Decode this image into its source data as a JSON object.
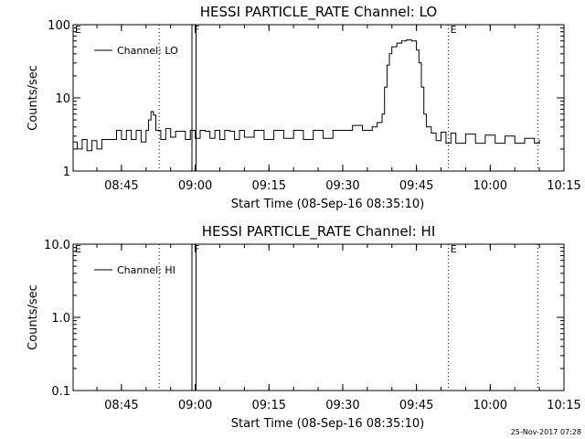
{
  "chart_data": [
    {
      "type": "line",
      "title": "HESSI PARTICLE_RATE Channel: LO",
      "xlabel": "Start Time (08-Sep-16 08:35:10)",
      "ylabel": "Counts/sec",
      "yscale": "log",
      "ylim": [
        1,
        100
      ],
      "xlim": [
        "08:35:10",
        "10:15:00"
      ],
      "x_ticks": [
        "08:45",
        "09:00",
        "09:15",
        "09:30",
        "09:45",
        "10:00",
        "10:15"
      ],
      "y_ticks": [
        "1",
        "10",
        "100"
      ],
      "legend": {
        "entries": [
          "Channel: LO"
        ],
        "placement": "top-left"
      },
      "grid": false,
      "series": [
        {
          "name": "Channel: LO",
          "x": [
            "08:35:10",
            "08:36:00",
            "08:37:00",
            "08:38:00",
            "08:39:00",
            "08:40:00",
            "08:41:00",
            "08:42:00",
            "08:43:00",
            "08:44:00",
            "08:45:00",
            "08:46:00",
            "08:47:00",
            "08:48:00",
            "08:49:00",
            "08:50:00",
            "08:50:30",
            "08:51:00",
            "08:51:30",
            "08:52:00",
            "08:53:00",
            "08:54:00",
            "08:55:00",
            "08:56:00",
            "08:57:00",
            "08:58:00",
            "08:59:00",
            "09:00:00",
            "09:01:00",
            "09:02:00",
            "09:03:00",
            "09:04:00",
            "09:05:00",
            "09:06:00",
            "09:07:00",
            "09:08:00",
            "09:09:00",
            "09:10:00",
            "09:12:00",
            "09:14:00",
            "09:16:00",
            "09:18:00",
            "09:20:00",
            "09:22:00",
            "09:24:00",
            "09:26:00",
            "09:28:00",
            "09:30:00",
            "09:32:00",
            "09:34:00",
            "09:36:00",
            "09:37:00",
            "09:38:00",
            "09:38:30",
            "09:39:00",
            "09:39:30",
            "09:40:00",
            "09:41:00",
            "09:42:00",
            "09:43:00",
            "09:44:00",
            "09:45:00",
            "09:45:30",
            "09:46:00",
            "09:46:30",
            "09:47:00",
            "09:48:00",
            "09:49:00",
            "09:50:00",
            "09:51:00",
            "09:52:00",
            "09:53:00",
            "09:55:00",
            "09:57:00",
            "09:59:00",
            "10:01:00",
            "10:03:00",
            "10:05:00",
            "10:07:00",
            "10:09:00",
            "10:10:00"
          ],
          "values": [
            2.5,
            2.0,
            2.7,
            1.9,
            2.6,
            2.0,
            2.7,
            2.7,
            2.7,
            3.6,
            2.7,
            3.6,
            2.7,
            3.6,
            2.5,
            3.6,
            5.0,
            6.5,
            5.8,
            3.6,
            2.7,
            3.8,
            2.9,
            3.5,
            3.5,
            2.7,
            3.6,
            2.8,
            3.6,
            3.5,
            2.8,
            3.6,
            2.7,
            3.6,
            3.5,
            2.7,
            3.6,
            2.9,
            3.6,
            2.7,
            3.6,
            2.8,
            3.6,
            2.7,
            3.6,
            2.8,
            3.6,
            3.6,
            4.2,
            3.6,
            4.0,
            4.6,
            6.0,
            14.0,
            28.0,
            40.0,
            50.0,
            56.0,
            60.0,
            62.0,
            60.0,
            45.0,
            30.0,
            14.0,
            6.0,
            4.0,
            3.3,
            2.6,
            3.4,
            2.4,
            3.3,
            2.4,
            3.2,
            2.4,
            3.1,
            2.4,
            3.0,
            2.4,
            2.8,
            2.4,
            2.7
          ]
        }
      ],
      "annotations": [
        "E",
        "F",
        "E"
      ]
    },
    {
      "type": "line",
      "title": "HESSI PARTICLE_RATE Channel: HI",
      "xlabel": "Start Time (08-Sep-16 08:35:10)",
      "ylabel": "Counts/sec",
      "yscale": "log",
      "ylim": [
        0.1,
        10
      ],
      "xlim": [
        "08:35:10",
        "10:15:00"
      ],
      "x_ticks": [
        "08:45",
        "09:00",
        "09:15",
        "09:30",
        "09:45",
        "10:00",
        "10:15"
      ],
      "y_ticks": [
        "0.1",
        "1.0",
        "10.0"
      ],
      "legend": {
        "entries": [
          "Channel: HI"
        ],
        "placement": "top-left"
      },
      "grid": false,
      "series": [
        {
          "name": "Channel: HI",
          "x": [],
          "values": []
        }
      ],
      "annotations": [
        "E",
        "F",
        "E"
      ]
    }
  ],
  "timestamp": "25-Nov-2017 07:28"
}
